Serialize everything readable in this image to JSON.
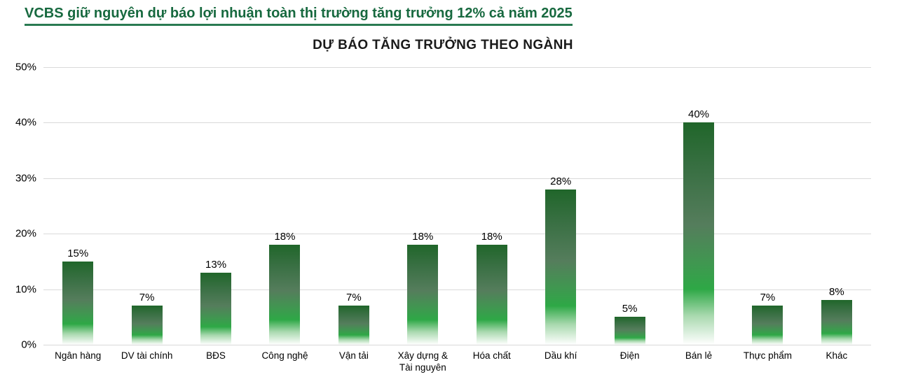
{
  "header": {
    "title": "VCBS giữ nguyên dự báo lợi nhuận toàn thị trường tăng trưởng 12% cả năm 2025"
  },
  "colors": {
    "title-green": "#17693f",
    "underline-green": "#2a7a52",
    "chart-title-color": "#1a1a1a",
    "gridline-color": "#d9d9d9",
    "text-color": "#000000",
    "bar-dark-green": "#20662a",
    "bar-vivid-green": "#2ea846"
  },
  "chart_data": {
    "type": "bar",
    "title": "DỰ BÁO TĂNG TRƯỞNG THEO NGÀNH",
    "categories": [
      "Ngân hàng",
      "DV tài chính",
      "BĐS",
      "Công nghệ",
      "Vận tải",
      "Xây dựng &\nTài nguyên",
      "Hóa chất",
      "Dầu khí",
      "Điện",
      "Bán lẻ",
      "Thực phẩm",
      "Khác"
    ],
    "values": [
      15,
      7,
      13,
      18,
      7,
      18,
      18,
      28,
      5,
      40,
      7,
      8
    ],
    "value_labels": [
      "15%",
      "7%",
      "13%",
      "18%",
      "7%",
      "18%",
      "18%",
      "28%",
      "5%",
      "40%",
      "7%",
      "8%"
    ],
    "xlabel": "",
    "ylabel": "",
    "ylim": [
      0,
      50
    ],
    "ylabel_ticks": [
      "0%",
      "10%",
      "20%",
      "30%",
      "40%",
      "50%"
    ],
    "grid": true,
    "legend": false,
    "bar_gradient_stops": [
      [
        "#20662a",
        0
      ],
      [
        "#3a7044",
        22
      ],
      [
        "#557d5c",
        46
      ],
      [
        "#3f9850",
        64
      ],
      [
        "#2ea846",
        75
      ],
      [
        "#a9d9af",
        87
      ],
      [
        "#ffffff",
        100
      ]
    ]
  }
}
